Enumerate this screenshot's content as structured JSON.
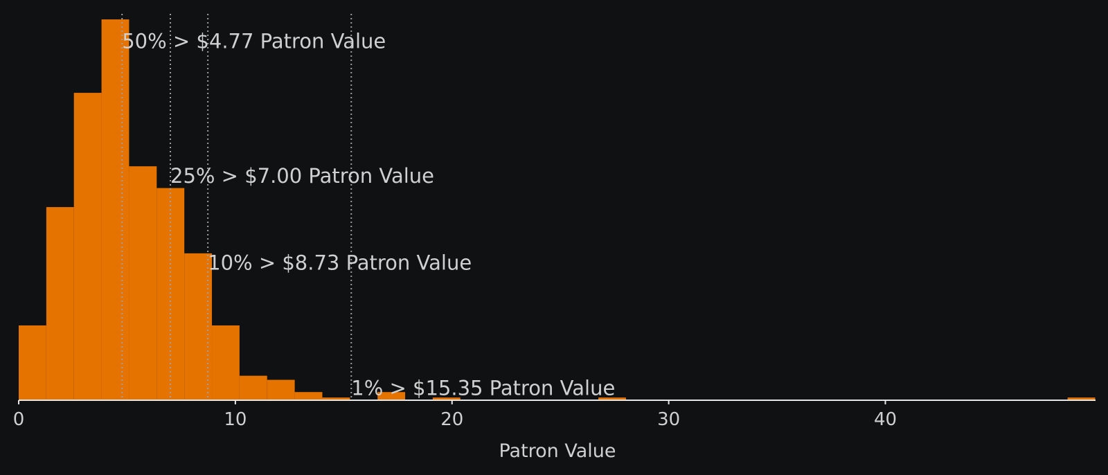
{
  "chart_data": {
    "type": "bar",
    "title": "",
    "xlabel": "Patron Value",
    "ylabel": "",
    "xlim": [
      0,
      49.7
    ],
    "ylim": [
      0,
      140
    ],
    "bin_width": 1.274,
    "bins": [
      {
        "x0": 0.0,
        "count": 27.5
      },
      {
        "x0": 1.274,
        "count": 71
      },
      {
        "x0": 2.548,
        "count": 113
      },
      {
        "x0": 3.822,
        "count": 140
      },
      {
        "x0": 5.096,
        "count": 86
      },
      {
        "x0": 6.37,
        "count": 78
      },
      {
        "x0": 7.644,
        "count": 54
      },
      {
        "x0": 8.918,
        "count": 27.5
      },
      {
        "x0": 10.192,
        "count": 9
      },
      {
        "x0": 11.466,
        "count": 7.5
      },
      {
        "x0": 12.74,
        "count": 3
      },
      {
        "x0": 14.014,
        "count": 1
      },
      {
        "x0": 15.288,
        "count": 0
      },
      {
        "x0": 16.562,
        "count": 3
      },
      {
        "x0": 17.836,
        "count": 0
      },
      {
        "x0": 19.11,
        "count": 1
      },
      {
        "x0": 26.754,
        "count": 1
      },
      {
        "x0": 48.41,
        "count": 1
      }
    ],
    "x_ticks": [
      {
        "value": 0,
        "label": "0"
      },
      {
        "value": 10,
        "label": "10"
      },
      {
        "value": 20,
        "label": "20"
      },
      {
        "value": 30,
        "label": "30"
      },
      {
        "value": 40,
        "label": "40"
      }
    ],
    "percentile_lines": [
      {
        "value": 4.77,
        "label": "50% > $4.77 Patron Value",
        "label_y": 132
      },
      {
        "value": 7.0,
        "label": "25% > $7.00 Patron Value",
        "label_y": 82.5
      },
      {
        "value": 8.73,
        "label": "10% > $8.73 Patron Value",
        "label_y": 50.5
      },
      {
        "value": 15.35,
        "label": "1% > $15.35 Patron Value",
        "label_y": 4.5
      }
    ],
    "colors": {
      "background": "#0f1113",
      "bar": "#e57300",
      "axis": "#e8e8e8",
      "text": "#d0d0d0",
      "line": "#a0a0a0"
    }
  }
}
